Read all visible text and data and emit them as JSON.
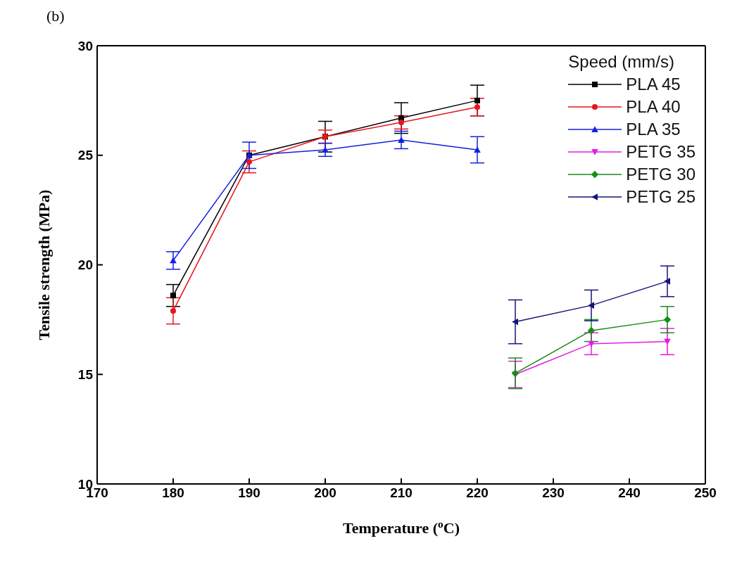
{
  "chart_data": {
    "type": "line",
    "title": "(b)",
    "xlabel": "Temperature ($^{o}$C)",
    "ylabel": "Tensile strength (MPa)",
    "legend_title": "Speed (mm/s)",
    "legend": "top right",
    "line_style": "solid",
    "xlim": [
      170,
      250
    ],
    "xticks": [
      170,
      180,
      190,
      200,
      210,
      220,
      230,
      240,
      250
    ],
    "ylim": [
      10,
      30
    ],
    "yticks": [
      10,
      15,
      20,
      25,
      30
    ],
    "series": [
      {
        "name": "PLA 45",
        "color": "#000000",
        "marker": "square",
        "x": [
          180,
          190,
          200,
          210,
          220
        ],
        "values": [
          18.6,
          25.0,
          25.85,
          26.7,
          27.5
        ],
        "errors": [
          0.5,
          null,
          0.7,
          0.7,
          0.7
        ]
      },
      {
        "name": "PLA 40",
        "color": "#e8141c",
        "marker": "circle",
        "x": [
          180,
          190,
          200,
          210,
          220
        ],
        "values": [
          17.9,
          24.7,
          25.85,
          26.5,
          27.2
        ],
        "errors": [
          0.6,
          0.5,
          0.3,
          0.3,
          0.4
        ]
      },
      {
        "name": "PLA 35",
        "color": "#1420e0",
        "marker": "triangle",
        "x": [
          180,
          190,
          200,
          210,
          220
        ],
        "values": [
          20.2,
          25.0,
          25.25,
          25.7,
          25.25
        ],
        "errors": [
          0.4,
          0.6,
          0.3,
          0.4,
          0.6
        ]
      },
      {
        "name": "PETG 35",
        "color": "#e01ee0",
        "marker": "triangle-down",
        "x": [
          225,
          235,
          245
        ],
        "values": [
          15.0,
          16.4,
          16.5
        ],
        "errors": [
          0.6,
          0.5,
          0.6
        ]
      },
      {
        "name": "PETG 30",
        "color": "#1a8a1a",
        "marker": "diamond",
        "x": [
          225,
          235,
          245
        ],
        "values": [
          15.05,
          17.0,
          17.5
        ],
        "errors": [
          0.7,
          0.5,
          0.6
        ]
      },
      {
        "name": "PETG 25",
        "color": "#14147a",
        "marker": "triangle-left",
        "x": [
          225,
          235,
          245
        ],
        "values": [
          17.4,
          18.15,
          19.25
        ],
        "errors": [
          1.0,
          0.7,
          0.7
        ]
      }
    ]
  }
}
